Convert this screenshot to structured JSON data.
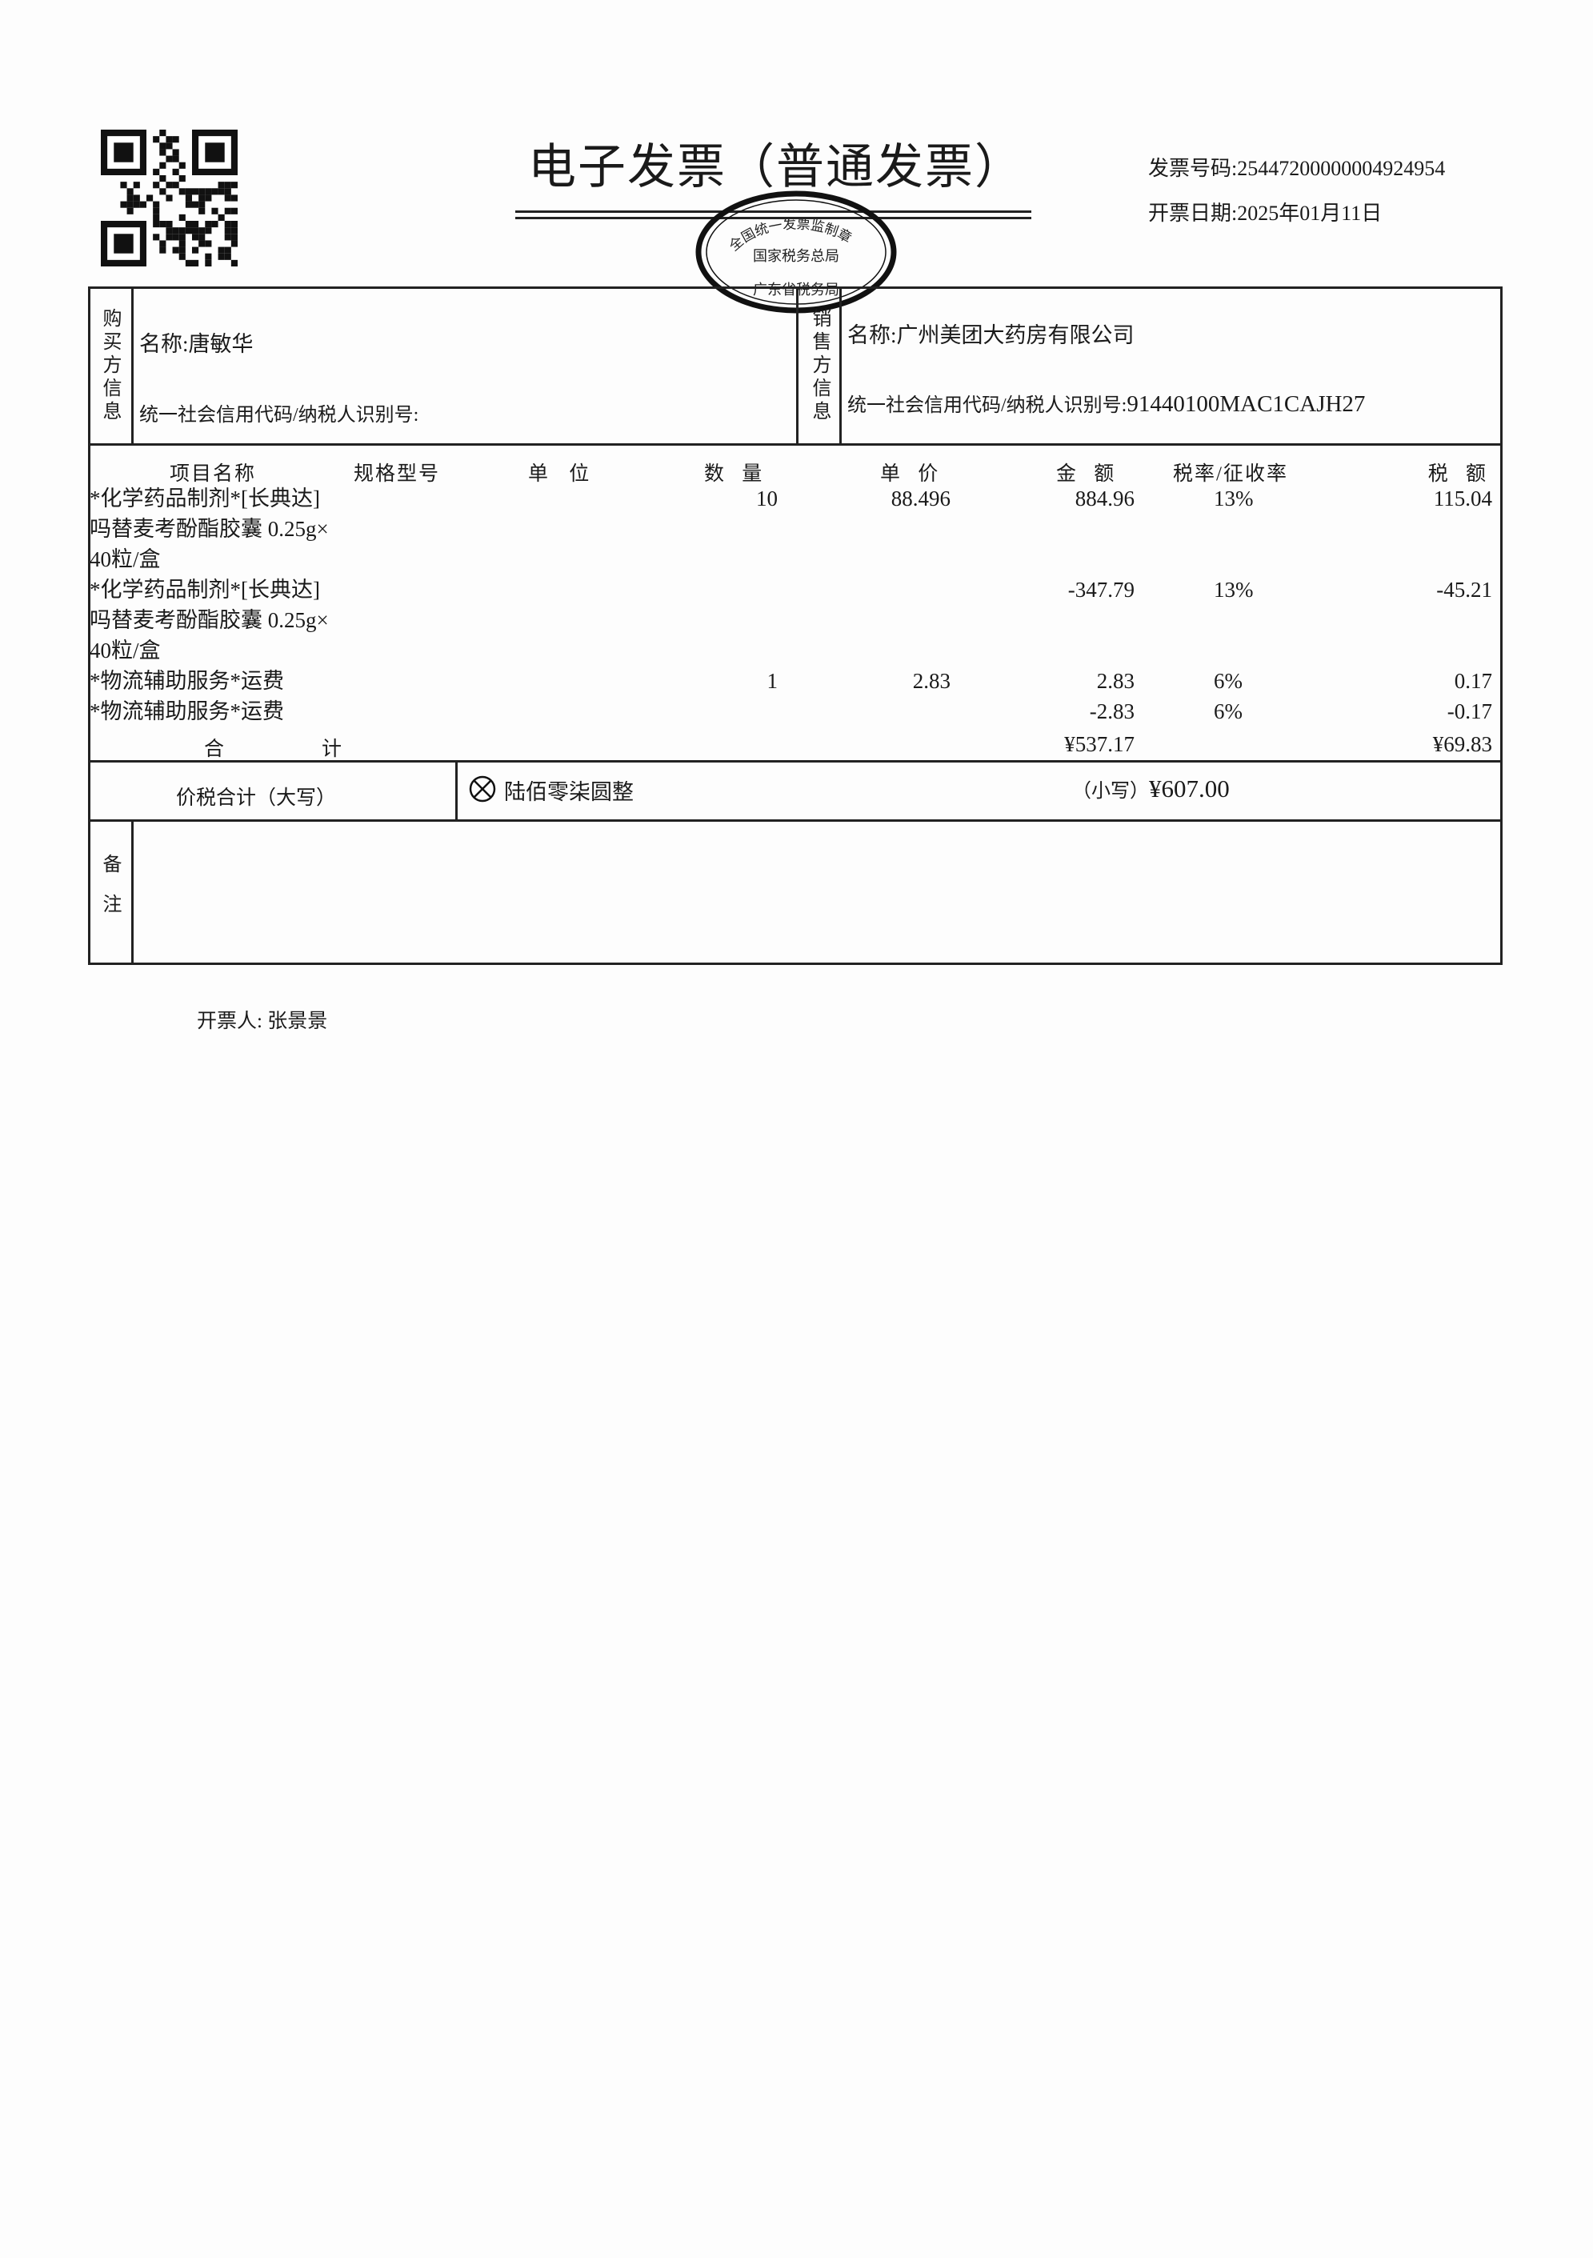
{
  "header": {
    "title": "电子发票（普通发票）",
    "invoice_number_label": "发票号码:",
    "invoice_number": "25447200000004924954",
    "issue_date_label": "开票日期:",
    "issue_date": "2025年01月11日",
    "stamp": {
      "top_text": "全国统一发票监制章",
      "middle_text": "国家税务总局",
      "bottom_text": "广东省税务局"
    }
  },
  "buyer": {
    "section_label": "购买方信息",
    "name_label": "名称:",
    "name": "唐敏华",
    "tax_id_label": "统一社会信用代码/纳税人识别号:",
    "tax_id": ""
  },
  "seller": {
    "section_label": "销售方信息",
    "name_label": "名称:",
    "name": "广州美团大药房有限公司",
    "tax_id_label": "统一社会信用代码/纳税人识别号:",
    "tax_id": "91440100MAC1CAJH27"
  },
  "items": {
    "columns": [
      "项目名称",
      "规格型号",
      "单 位",
      "数 量",
      "单 价",
      "金 额",
      "税率/征收率",
      "税 额"
    ],
    "rows": [
      {
        "name": "*化学药品制剂*[长典达]",
        "qty": "10",
        "price": "88.496",
        "amount": "884.96",
        "rate": "13%",
        "tax": "115.04"
      },
      {
        "name": "吗替麦考酚酯胶囊 0.25g×",
        "qty": "",
        "price": "",
        "amount": "",
        "rate": "",
        "tax": ""
      },
      {
        "name": "40粒/盒",
        "qty": "",
        "price": "",
        "amount": "",
        "rate": "",
        "tax": ""
      },
      {
        "name": "*化学药品制剂*[长典达]",
        "qty": "",
        "price": "",
        "amount": "-347.79",
        "rate": "13%",
        "tax": "-45.21"
      },
      {
        "name": "吗替麦考酚酯胶囊 0.25g×",
        "qty": "",
        "price": "",
        "amount": "",
        "rate": "",
        "tax": ""
      },
      {
        "name": "40粒/盒",
        "qty": "",
        "price": "",
        "amount": "",
        "rate": "",
        "tax": ""
      },
      {
        "name": "*物流辅助服务*运费",
        "qty": "1",
        "price": "2.83",
        "amount": "2.83",
        "rate": "6%",
        "tax": "0.17"
      },
      {
        "name": "*物流辅助服务*运费",
        "qty": "",
        "price": "",
        "amount": "-2.83",
        "rate": "6%",
        "tax": "-0.17"
      }
    ],
    "total_label_1": "合",
    "total_label_2": "计",
    "total_amount": "¥537.17",
    "total_tax": "¥69.83"
  },
  "grand_total": {
    "label": "价税合计（大写）",
    "icon": "circled-x-icon",
    "uppercase": "陆佰零柒圆整",
    "small_label": "（小写）",
    "small_value": "¥607.00"
  },
  "remarks": {
    "label": "备注",
    "content": ""
  },
  "issuer": {
    "label": "开票人:",
    "name": "张景景"
  }
}
